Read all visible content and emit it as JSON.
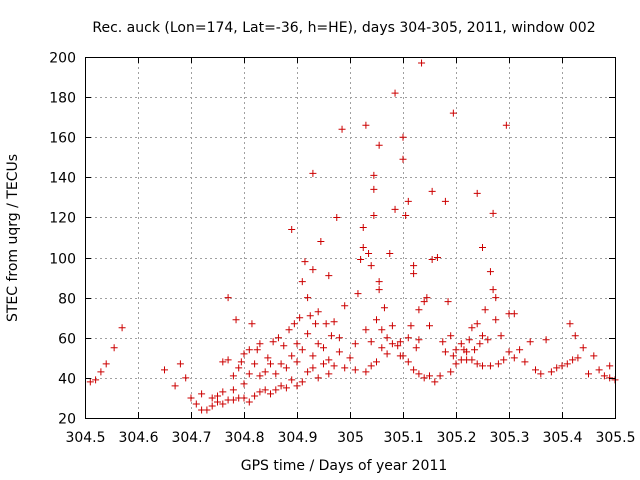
{
  "chart_data": {
    "type": "scatter",
    "title": "Rec. auck (Lon=174, Lat=-36, h=HE), days 304-305, 2011, window 002",
    "xlabel": "GPS time / Days of year 2011",
    "ylabel": "STEC from uqrg / TECUs",
    "xlim": [
      304.5,
      305.5
    ],
    "ylim": [
      20,
      200
    ],
    "xticks": [
      "304.5",
      "304.6",
      "304.7",
      "304.8",
      "304.9",
      "305",
      "305.1",
      "305.2",
      "305.3",
      "305.4",
      "305.5"
    ],
    "yticks": [
      "20",
      "40",
      "60",
      "80",
      "100",
      "120",
      "140",
      "160",
      "180",
      "200"
    ],
    "grid": true,
    "marker": "plus",
    "color": "#cc0000",
    "points": [
      [
        304.51,
        38
      ],
      [
        304.52,
        39
      ],
      [
        304.53,
        43
      ],
      [
        304.54,
        47
      ],
      [
        304.555,
        55
      ],
      [
        304.57,
        65
      ],
      [
        304.65,
        44
      ],
      [
        304.67,
        36
      ],
      [
        304.68,
        47
      ],
      [
        304.69,
        40
      ],
      [
        304.7,
        30
      ],
      [
        304.71,
        27
      ],
      [
        304.72,
        32
      ],
      [
        304.72,
        24
      ],
      [
        304.73,
        24
      ],
      [
        304.74,
        26
      ],
      [
        304.74,
        30
      ],
      [
        304.75,
        28
      ],
      [
        304.75,
        31
      ],
      [
        304.76,
        27
      ],
      [
        304.76,
        33
      ],
      [
        304.76,
        48
      ],
      [
        304.77,
        29
      ],
      [
        304.77,
        49
      ],
      [
        304.77,
        80
      ],
      [
        304.78,
        29
      ],
      [
        304.78,
        34
      ],
      [
        304.78,
        41
      ],
      [
        304.785,
        69
      ],
      [
        304.79,
        30
      ],
      [
        304.79,
        45
      ],
      [
        304.795,
        48
      ],
      [
        304.8,
        30
      ],
      [
        304.8,
        37
      ],
      [
        304.8,
        52
      ],
      [
        304.81,
        28
      ],
      [
        304.81,
        42
      ],
      [
        304.81,
        54
      ],
      [
        304.815,
        67
      ],
      [
        304.82,
        31
      ],
      [
        304.82,
        47
      ],
      [
        304.825,
        54
      ],
      [
        304.83,
        33
      ],
      [
        304.83,
        41
      ],
      [
        304.83,
        57
      ],
      [
        304.84,
        34
      ],
      [
        304.84,
        43
      ],
      [
        304.845,
        50
      ],
      [
        304.85,
        32
      ],
      [
        304.85,
        47
      ],
      [
        304.855,
        58
      ],
      [
        304.86,
        34
      ],
      [
        304.86,
        42
      ],
      [
        304.865,
        60
      ],
      [
        304.87,
        36
      ],
      [
        304.87,
        47
      ],
      [
        304.875,
        56
      ],
      [
        304.88,
        35
      ],
      [
        304.88,
        45
      ],
      [
        304.885,
        64
      ],
      [
        304.89,
        39
      ],
      [
        304.89,
        51
      ],
      [
        304.89,
        114
      ],
      [
        304.895,
        67
      ],
      [
        304.9,
        36
      ],
      [
        304.9,
        48
      ],
      [
        304.9,
        57
      ],
      [
        304.905,
        70
      ],
      [
        304.91,
        38
      ],
      [
        304.91,
        54
      ],
      [
        304.91,
        88
      ],
      [
        304.915,
        98
      ],
      [
        304.92,
        43
      ],
      [
        304.92,
        62
      ],
      [
        304.92,
        80
      ],
      [
        304.925,
        71
      ],
      [
        304.93,
        45
      ],
      [
        304.93,
        51
      ],
      [
        304.93,
        94
      ],
      [
        304.93,
        142
      ],
      [
        304.935,
        67
      ],
      [
        304.94,
        40
      ],
      [
        304.94,
        57
      ],
      [
        304.94,
        73
      ],
      [
        304.945,
        108
      ],
      [
        304.95,
        47
      ],
      [
        304.95,
        55
      ],
      [
        304.955,
        67
      ],
      [
        304.96,
        42
      ],
      [
        304.96,
        49
      ],
      [
        304.96,
        91
      ],
      [
        304.965,
        61
      ],
      [
        304.97,
        46
      ],
      [
        304.97,
        68
      ],
      [
        304.975,
        120
      ],
      [
        304.98,
        53
      ],
      [
        304.98,
        60
      ],
      [
        304.985,
        164
      ],
      [
        304.99,
        45
      ],
      [
        304.99,
        76
      ],
      [
        305,
        50
      ],
      [
        305.01,
        44
      ],
      [
        305.01,
        57
      ],
      [
        305.015,
        82
      ],
      [
        305.02,
        99
      ],
      [
        305.025,
        105
      ],
      [
        305.025,
        115
      ],
      [
        305.03,
        43
      ],
      [
        305.03,
        64
      ],
      [
        305.03,
        166
      ],
      [
        305.035,
        102
      ],
      [
        305.04,
        46
      ],
      [
        305.04,
        58
      ],
      [
        305.04,
        96
      ],
      [
        305.045,
        121
      ],
      [
        305.045,
        134
      ],
      [
        305.045,
        141
      ],
      [
        305.05,
        48
      ],
      [
        305.05,
        69
      ],
      [
        305.055,
        84
      ],
      [
        305.055,
        88
      ],
      [
        305.055,
        156
      ],
      [
        305.06,
        55
      ],
      [
        305.06,
        64
      ],
      [
        305.065,
        75
      ],
      [
        305.07,
        52
      ],
      [
        305.07,
        60
      ],
      [
        305.075,
        102
      ],
      [
        305.08,
        57
      ],
      [
        305.08,
        66
      ],
      [
        305.085,
        124
      ],
      [
        305.085,
        182
      ],
      [
        305.09,
        56
      ],
      [
        305.095,
        51
      ],
      [
        305.095,
        58
      ],
      [
        305.1,
        51
      ],
      [
        305.1,
        149
      ],
      [
        305.1,
        160
      ],
      [
        305.105,
        121
      ],
      [
        305.11,
        48
      ],
      [
        305.11,
        60
      ],
      [
        305.11,
        128
      ],
      [
        305.115,
        66
      ],
      [
        305.12,
        44
      ],
      [
        305.12,
        92
      ],
      [
        305.12,
        96
      ],
      [
        305.125,
        55
      ],
      [
        305.13,
        42
      ],
      [
        305.13,
        59
      ],
      [
        305.13,
        74
      ],
      [
        305.135,
        197
      ],
      [
        305.14,
        40
      ],
      [
        305.14,
        78
      ],
      [
        305.145,
        80
      ],
      [
        305.15,
        41
      ],
      [
        305.15,
        66
      ],
      [
        305.155,
        99
      ],
      [
        305.155,
        133
      ],
      [
        305.16,
        38
      ],
      [
        305.165,
        100
      ],
      [
        305.17,
        41
      ],
      [
        305.175,
        58
      ],
      [
        305.18,
        53
      ],
      [
        305.18,
        128
      ],
      [
        305.185,
        78
      ],
      [
        305.19,
        43
      ],
      [
        305.19,
        61
      ],
      [
        305.195,
        51
      ],
      [
        305.195,
        172
      ],
      [
        305.2,
        47
      ],
      [
        305.2,
        54
      ],
      [
        305.21,
        49
      ],
      [
        305.21,
        57
      ],
      [
        305.215,
        54
      ],
      [
        305.22,
        49
      ],
      [
        305.22,
        53
      ],
      [
        305.225,
        59
      ],
      [
        305.23,
        49
      ],
      [
        305.23,
        65
      ],
      [
        305.235,
        54
      ],
      [
        305.24,
        47
      ],
      [
        305.24,
        67
      ],
      [
        305.24,
        132
      ],
      [
        305.245,
        57
      ],
      [
        305.25,
        46
      ],
      [
        305.25,
        61
      ],
      [
        305.25,
        105
      ],
      [
        305.255,
        74
      ],
      [
        305.26,
        59
      ],
      [
        305.265,
        46
      ],
      [
        305.265,
        93
      ],
      [
        305.27,
        84
      ],
      [
        305.27,
        122
      ],
      [
        305.275,
        69
      ],
      [
        305.275,
        80
      ],
      [
        305.28,
        47
      ],
      [
        305.285,
        61
      ],
      [
        305.29,
        49
      ],
      [
        305.295,
        166
      ],
      [
        305.3,
        72
      ],
      [
        305.3,
        53
      ],
      [
        305.31,
        72
      ],
      [
        305.31,
        50
      ],
      [
        305.32,
        54
      ],
      [
        305.33,
        48
      ],
      [
        305.34,
        58
      ],
      [
        305.35,
        44
      ],
      [
        305.36,
        42
      ],
      [
        305.37,
        59
      ],
      [
        305.38,
        43
      ],
      [
        305.39,
        45
      ],
      [
        305.4,
        46
      ],
      [
        305.41,
        47
      ],
      [
        305.415,
        67
      ],
      [
        305.42,
        49
      ],
      [
        305.425,
        61
      ],
      [
        305.43,
        50
      ],
      [
        305.44,
        55
      ],
      [
        305.45,
        42
      ],
      [
        305.46,
        51
      ],
      [
        305.47,
        44
      ],
      [
        305.48,
        41
      ],
      [
        305.49,
        40
      ],
      [
        305.49,
        46
      ],
      [
        305.5,
        39
      ]
    ]
  }
}
